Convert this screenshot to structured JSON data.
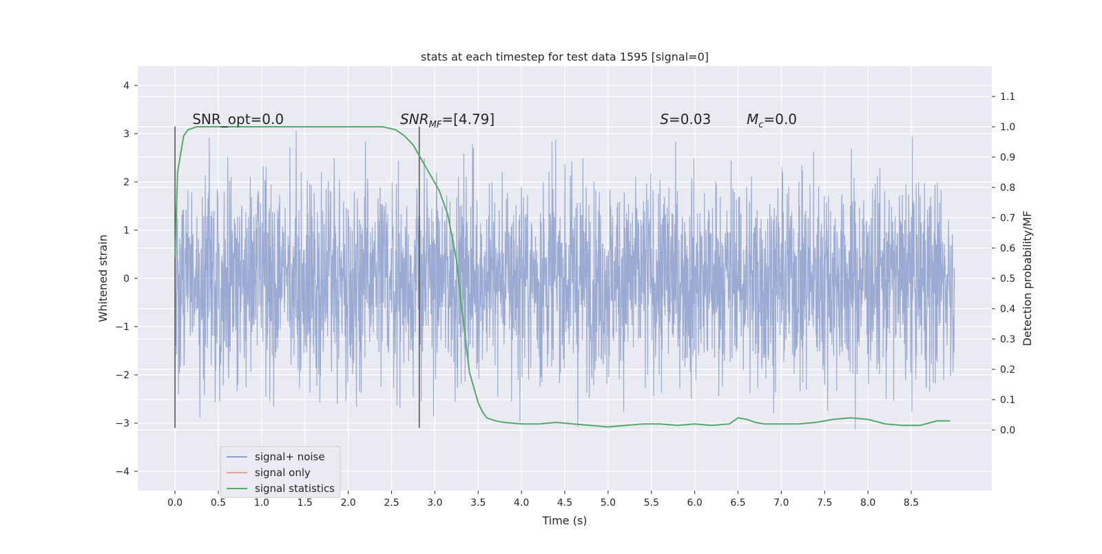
{
  "chart_data": {
    "type": "line",
    "title": "stats at each timestep for test data 1595 [signal=0]",
    "xlabel": "Time (s)",
    "ylabel_left": "Whitened strain",
    "ylabel_right": "Detection probability/MF",
    "xlim": [
      -0.43,
      9.43
    ],
    "ylim_left": [
      -4.4,
      4.4
    ],
    "ylim_right": [
      -0.2,
      1.2
    ],
    "x_ticks": [
      0.0,
      0.5,
      1.0,
      1.5,
      2.0,
      2.5,
      3.0,
      3.5,
      4.0,
      4.5,
      5.0,
      5.5,
      6.0,
      6.5,
      7.0,
      7.5,
      8.0,
      8.5
    ],
    "x_tick_labels": [
      "0.0",
      "0.5",
      "1.0",
      "1.5",
      "2.0",
      "2.5",
      "3.0",
      "3.5",
      "4.0",
      "4.5",
      "5.0",
      "5.5",
      "6.0",
      "6.5",
      "7.0",
      "7.5",
      "8.0",
      "8.5"
    ],
    "y_left_ticks": [
      -4,
      -3,
      -2,
      -1,
      0,
      1,
      2,
      3,
      4
    ],
    "y_left_tick_labels": [
      "−4",
      "−3",
      "−2",
      "−1",
      "0",
      "1",
      "2",
      "3",
      "4"
    ],
    "y_right_ticks": [
      0.0,
      0.1,
      0.2,
      0.3,
      0.4,
      0.5,
      0.6,
      0.7,
      0.8,
      0.9,
      1.0,
      1.1
    ],
    "y_right_tick_labels": [
      "0.0",
      "0.1",
      "0.2",
      "0.3",
      "0.4",
      "0.5",
      "0.6",
      "0.7",
      "0.8",
      "0.9",
      "1.0",
      "1.1"
    ],
    "grid": true,
    "legend_position": "lower-left",
    "noise_series": {
      "name": "signal+ noise",
      "axis": "left",
      "color": "#8c9fcd",
      "x_range": [
        0.0,
        9.0
      ],
      "typical_amplitude": 1.9,
      "max_value": 4.0,
      "min_value": -3.9
    },
    "signal_series": {
      "name": "signal only",
      "axis": "left",
      "color": "#e1a587",
      "values": []
    },
    "stat_series": {
      "name": "signal statistics",
      "axis": "right",
      "color": "#55a868",
      "x": [
        0.0,
        0.03,
        0.07,
        0.1,
        0.15,
        0.25,
        0.4,
        0.6,
        1.0,
        1.5,
        2.0,
        2.2,
        2.4,
        2.55,
        2.65,
        2.75,
        2.85,
        2.95,
        3.05,
        3.15,
        3.25,
        3.3,
        3.35,
        3.4,
        3.5,
        3.55,
        3.6,
        3.7,
        3.8,
        4.0,
        4.2,
        4.4,
        4.6,
        4.8,
        5.0,
        5.2,
        5.4,
        5.6,
        5.8,
        6.0,
        6.2,
        6.4,
        6.5,
        6.6,
        6.7,
        6.8,
        7.0,
        7.2,
        7.4,
        7.6,
        7.8,
        8.0,
        8.2,
        8.4,
        8.6,
        8.8,
        8.95
      ],
      "values": [
        0.57,
        0.85,
        0.92,
        0.97,
        0.99,
        1.0,
        1.0,
        1.0,
        1.0,
        1.0,
        1.0,
        1.0,
        1.0,
        0.99,
        0.97,
        0.94,
        0.89,
        0.84,
        0.79,
        0.71,
        0.56,
        0.43,
        0.31,
        0.19,
        0.09,
        0.06,
        0.04,
        0.03,
        0.025,
        0.02,
        0.02,
        0.025,
        0.02,
        0.015,
        0.01,
        0.015,
        0.02,
        0.02,
        0.015,
        0.02,
        0.015,
        0.02,
        0.04,
        0.035,
        0.025,
        0.02,
        0.02,
        0.02,
        0.025,
        0.035,
        0.04,
        0.035,
        0.02,
        0.015,
        0.015,
        0.03,
        0.03
      ]
    },
    "markers_x": [
      0.0,
      2.82
    ],
    "markers_ylim": [
      -3.1,
      3.15
    ],
    "annotations": [
      {
        "key": "snr_opt",
        "text": "SNR_opt=0.0",
        "x": 0.2
      },
      {
        "key": "snr_mf",
        "text": "SNR_MF=[4.79]",
        "x": 2.6
      },
      {
        "key": "s_value",
        "text": "S=0.03",
        "x": 5.6
      },
      {
        "key": "mc_value",
        "text": "M_c=0.0",
        "x": 6.6
      }
    ],
    "annotations_y": 3.2
  }
}
